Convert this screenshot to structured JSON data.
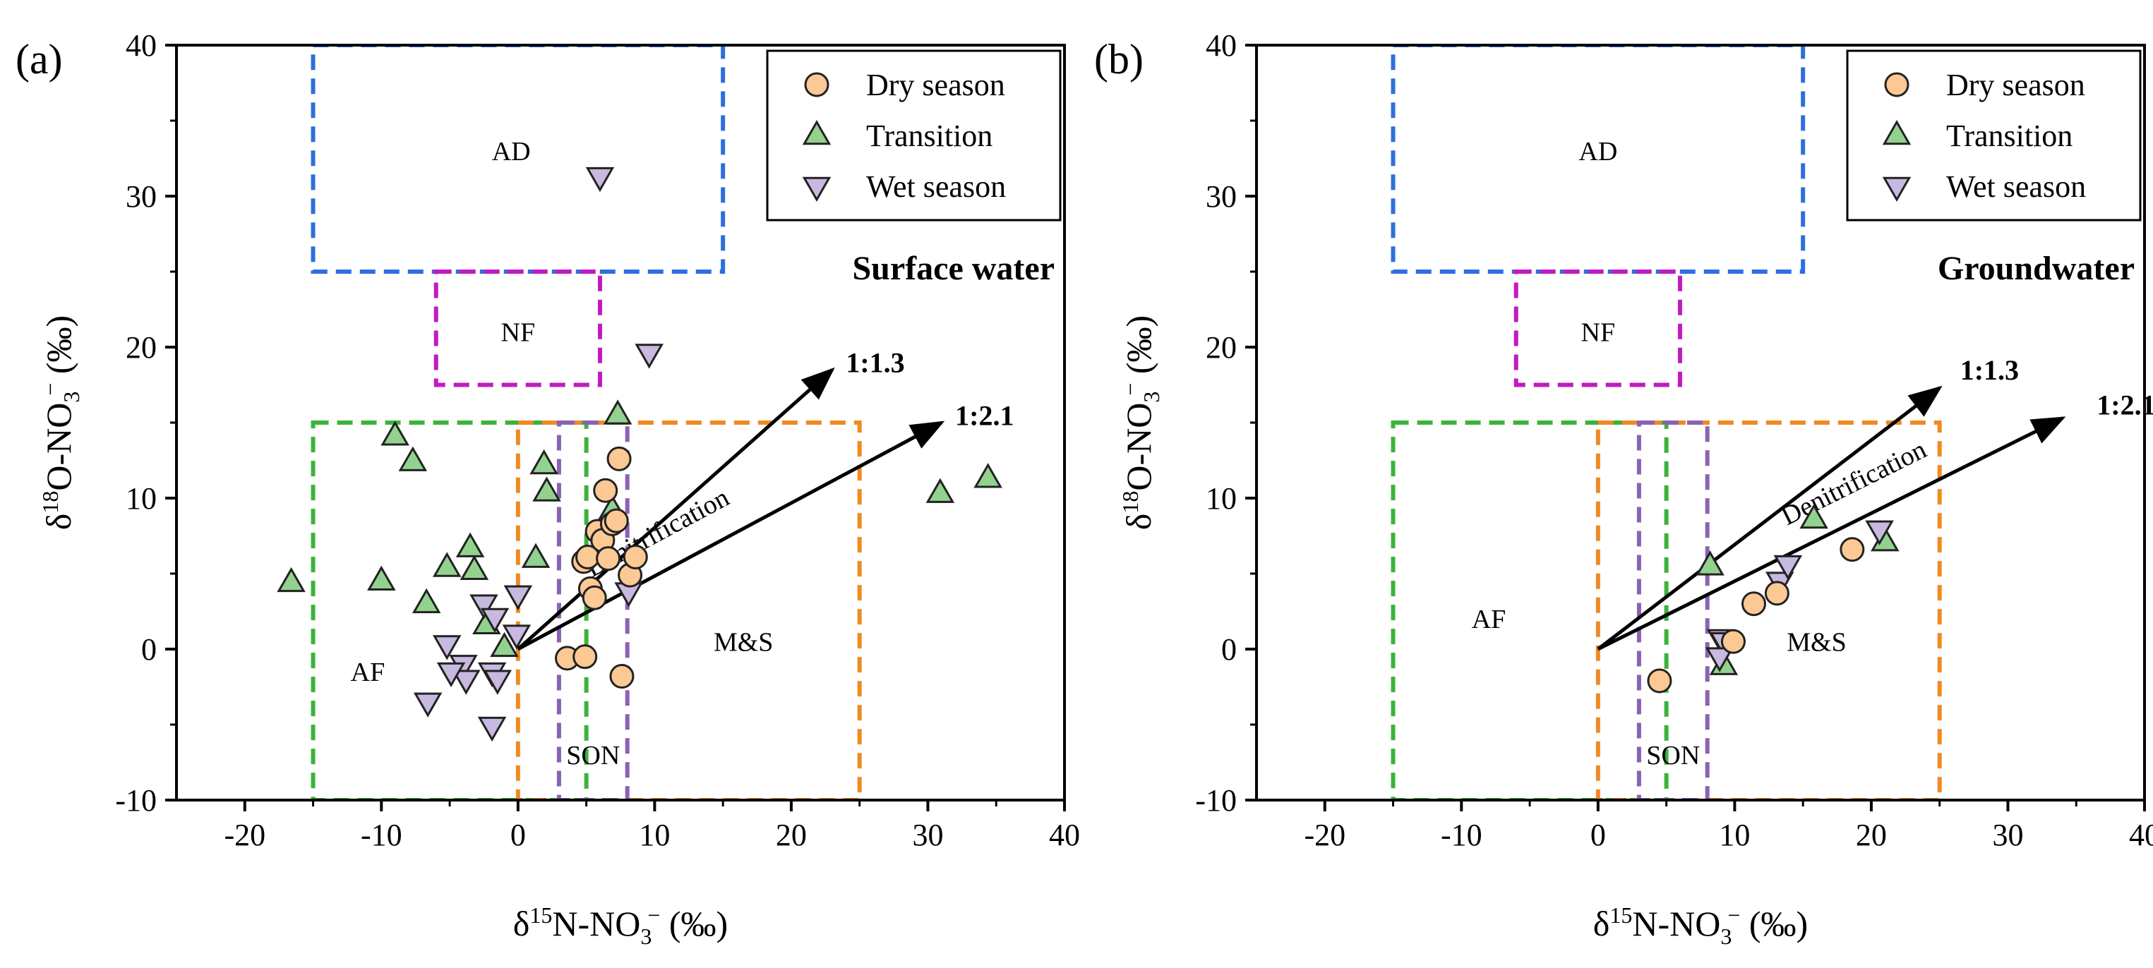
{
  "figure": {
    "colors": {
      "AD": "#2f6ee0",
      "NF": "#c21ac2",
      "AF": "#3bb33b",
      "MS": "#f08a24",
      "SON": "#8a62b3",
      "dry_fill": "#fcc894",
      "transition_fill": "#92d28e",
      "wet_fill": "#c8b9e0",
      "marker_edge": "#222222"
    },
    "legend": [
      {
        "key": "dry",
        "label": "Dry season",
        "marker": "circle"
      },
      {
        "key": "transition",
        "label": "Transition",
        "marker": "triangle-up"
      },
      {
        "key": "wet",
        "label": "Wet season",
        "marker": "triangle-down"
      }
    ]
  },
  "chart_data": [
    {
      "type": "scatter",
      "panel": "(a)",
      "title": "Surface water",
      "xlabel": "δ15N-NO3− (‰)",
      "ylabel": "δ18O-NO3− (‰)",
      "xlim": [
        -25,
        40
      ],
      "ylim": [
        -10,
        40
      ],
      "xticks": [
        -20,
        -10,
        0,
        10,
        20,
        30,
        40
      ],
      "yticks": [
        -10,
        0,
        10,
        20,
        30,
        40
      ],
      "grid": false,
      "legend_position": "top-right",
      "regions": [
        {
          "label": "AD",
          "x": [
            -15,
            15
          ],
          "y": [
            25,
            40
          ],
          "color_key": "AD",
          "label_at": [
            -0.5,
            33
          ]
        },
        {
          "label": "NF",
          "x": [
            -6,
            6
          ],
          "y": [
            17.5,
            25
          ],
          "color_key": "NF",
          "label_at": [
            0,
            21
          ]
        },
        {
          "label": "AF",
          "x": [
            -15,
            5
          ],
          "y": [
            -10,
            15
          ],
          "color_key": "AF",
          "label_at": [
            -11,
            -1.5
          ]
        },
        {
          "label": "M&S",
          "x": [
            0,
            25
          ],
          "y": [
            -10,
            15
          ],
          "color_key": "MS",
          "label_at": [
            16.5,
            0.5
          ]
        },
        {
          "label": "SON",
          "x": [
            3,
            8
          ],
          "y": [
            -10,
            15
          ],
          "color_key": "SON",
          "label_at": [
            5.5,
            -7
          ]
        }
      ],
      "arrows": [
        {
          "label": "1:1.3",
          "from": [
            0,
            0
          ],
          "to": [
            23,
            18.5
          ],
          "label_at": [
            24,
            19
          ]
        },
        {
          "label": "1:2.1",
          "from": [
            0,
            0
          ],
          "to": [
            31,
            15
          ],
          "label_at": [
            32,
            15.5
          ]
        }
      ],
      "rotated_label": {
        "text": "Denitrification",
        "at": [
          10.5,
          7.2
        ]
      },
      "series": [
        {
          "name": "Dry season",
          "key": "dry",
          "points": [
            [
              4.8,
              5.8
            ],
            [
              5.1,
              6.1
            ],
            [
              5.3,
              4.0
            ],
            [
              5.6,
              3.4
            ],
            [
              5.8,
              7.8
            ],
            [
              6.2,
              7.2
            ],
            [
              6.4,
              10.5
            ],
            [
              6.6,
              6.0
            ],
            [
              6.9,
              8.3
            ],
            [
              7.2,
              8.5
            ],
            [
              7.4,
              12.6
            ],
            [
              8.2,
              4.9
            ],
            [
              8.6,
              6.1
            ],
            [
              3.6,
              -0.6
            ],
            [
              4.9,
              -0.5
            ],
            [
              7.6,
              -1.8
            ]
          ]
        },
        {
          "name": "Transition",
          "key": "transition",
          "points": [
            [
              -9.0,
              14.1
            ],
            [
              -7.7,
              12.4
            ],
            [
              -16.6,
              4.4
            ],
            [
              -10.0,
              4.5
            ],
            [
              -6.7,
              3.0
            ],
            [
              -5.2,
              5.4
            ],
            [
              -3.5,
              6.7
            ],
            [
              -3.2,
              5.2
            ],
            [
              -2.3,
              1.6
            ],
            [
              -1.0,
              0.1
            ],
            [
              1.3,
              6.0
            ],
            [
              1.9,
              12.2
            ],
            [
              2.1,
              10.4
            ],
            [
              6.9,
              9.2
            ],
            [
              7.3,
              15.5
            ],
            [
              30.9,
              10.3
            ],
            [
              34.4,
              11.3
            ]
          ]
        },
        {
          "name": "Wet season",
          "key": "wet",
          "points": [
            [
              6.0,
              31.3
            ],
            [
              9.6,
              19.6
            ],
            [
              8.1,
              3.8
            ],
            [
              0.0,
              3.6
            ],
            [
              -0.1,
              1.0
            ],
            [
              -2.5,
              3.0
            ],
            [
              -1.7,
              2.1
            ],
            [
              -5.2,
              0.3
            ],
            [
              -4.0,
              -1.0
            ],
            [
              -3.8,
              -2.0
            ],
            [
              -4.9,
              -1.5
            ],
            [
              -1.9,
              -1.5
            ],
            [
              -1.5,
              -2.0
            ],
            [
              -6.6,
              -3.5
            ],
            [
              -1.9,
              -5.1
            ]
          ]
        }
      ]
    },
    {
      "type": "scatter",
      "panel": "(b)",
      "title": "Groundwater",
      "xlabel": "δ15N-NO3− (‰)",
      "ylabel": "δ18O-NO3− (‰)",
      "xlim": [
        -25,
        40
      ],
      "ylim": [
        -10,
        40
      ],
      "xticks": [
        -20,
        -10,
        0,
        10,
        20,
        30,
        40
      ],
      "yticks": [
        -10,
        0,
        10,
        20,
        30,
        40
      ],
      "grid": false,
      "legend_position": "top-right",
      "regions": [
        {
          "label": "AD",
          "x": [
            -15,
            15
          ],
          "y": [
            25,
            40
          ],
          "color_key": "AD",
          "label_at": [
            0,
            33
          ]
        },
        {
          "label": "NF",
          "x": [
            -6,
            6
          ],
          "y": [
            17.5,
            25
          ],
          "color_key": "NF",
          "label_at": [
            0,
            21
          ]
        },
        {
          "label": "AF",
          "x": [
            -15,
            5
          ],
          "y": [
            -10,
            15
          ],
          "color_key": "AF",
          "label_at": [
            -8,
            2
          ]
        },
        {
          "label": "M&S",
          "x": [
            0,
            25
          ],
          "y": [
            -10,
            15
          ],
          "color_key": "MS",
          "label_at": [
            16,
            0.5
          ]
        },
        {
          "label": "SON",
          "x": [
            3,
            8
          ],
          "y": [
            -10,
            15
          ],
          "color_key": "SON",
          "label_at": [
            5.5,
            -7
          ]
        }
      ],
      "arrows": [
        {
          "label": "1:1.3",
          "from": [
            0,
            0
          ],
          "to": [
            25,
            17.3
          ],
          "label_at": [
            26.5,
            18.5
          ]
        },
        {
          "label": "1:2.1",
          "from": [
            0,
            0
          ],
          "to": [
            34,
            15.3
          ],
          "label_at": [
            36.5,
            16.2
          ]
        }
      ],
      "rotated_label": {
        "text": "Denitrification",
        "at": [
          19,
          10.5
        ]
      },
      "series": [
        {
          "name": "Dry season",
          "key": "dry",
          "points": [
            [
              4.5,
              -2.1
            ],
            [
              9.9,
              0.5
            ],
            [
              11.4,
              3.0
            ],
            [
              13.1,
              3.7
            ],
            [
              18.6,
              6.6
            ]
          ]
        },
        {
          "name": "Transition",
          "key": "transition",
          "points": [
            [
              8.2,
              5.5
            ],
            [
              9.2,
              -1.1
            ],
            [
              15.8,
              8.6
            ],
            [
              21.0,
              7.1
            ]
          ]
        },
        {
          "name": "Wet season",
          "key": "wet",
          "points": [
            [
              9.0,
              0.7
            ],
            [
              9.2,
              0.5
            ],
            [
              8.9,
              -0.5
            ],
            [
              13.3,
              4.5
            ],
            [
              13.9,
              5.6
            ],
            [
              20.6,
              7.9
            ]
          ]
        }
      ]
    }
  ]
}
